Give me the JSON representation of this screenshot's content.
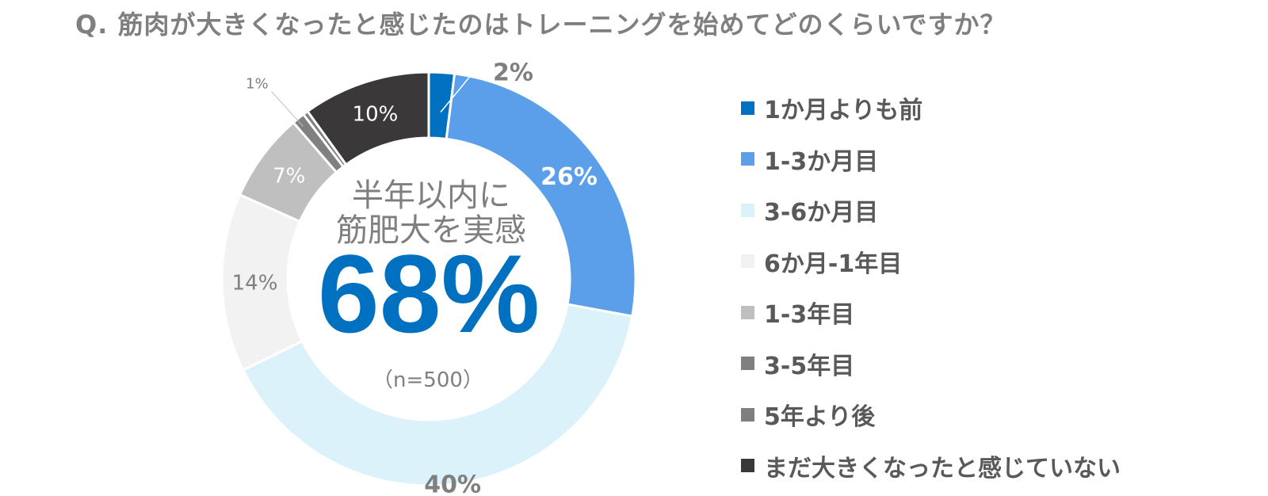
{
  "title": "Q.  筋肉が大きくなったと感じたのはトレーニングを始めてどのくらいですか？",
  "chart_data": {
    "type": "pie",
    "donut": true,
    "categories": [
      "1か月よりも前",
      "1-3か月目",
      "3-6か月目",
      "6か月-1年目",
      "1-3年目",
      "3-5年目",
      "5年より後",
      "まだ大きくなったと感じていない"
    ],
    "values": [
      2,
      26,
      40,
      14,
      7,
      1,
      0.4,
      10
    ],
    "labels": [
      "2%",
      "26%",
      "40%",
      "14%",
      "7%",
      "1%",
      "",
      "10%"
    ],
    "colors": [
      "#0070c0",
      "#5b9fea",
      "#dbf2fb",
      "#f2f2f2",
      "#bfbfbf",
      "#808080",
      "#7f7f7f",
      "#3a3838"
    ],
    "label_colors": [
      "#7f7f7f",
      "#ffffff",
      "#7f7f7f",
      "#7f7f7f",
      "#ffffff",
      "#7f7f7f",
      "#7f7f7f",
      "#ffffff"
    ],
    "center_text": {
      "line1": "半年以内に",
      "line2": "筋肥大を実感",
      "big": "68%",
      "sample": "（n=500）"
    },
    "legend_position": "right"
  }
}
